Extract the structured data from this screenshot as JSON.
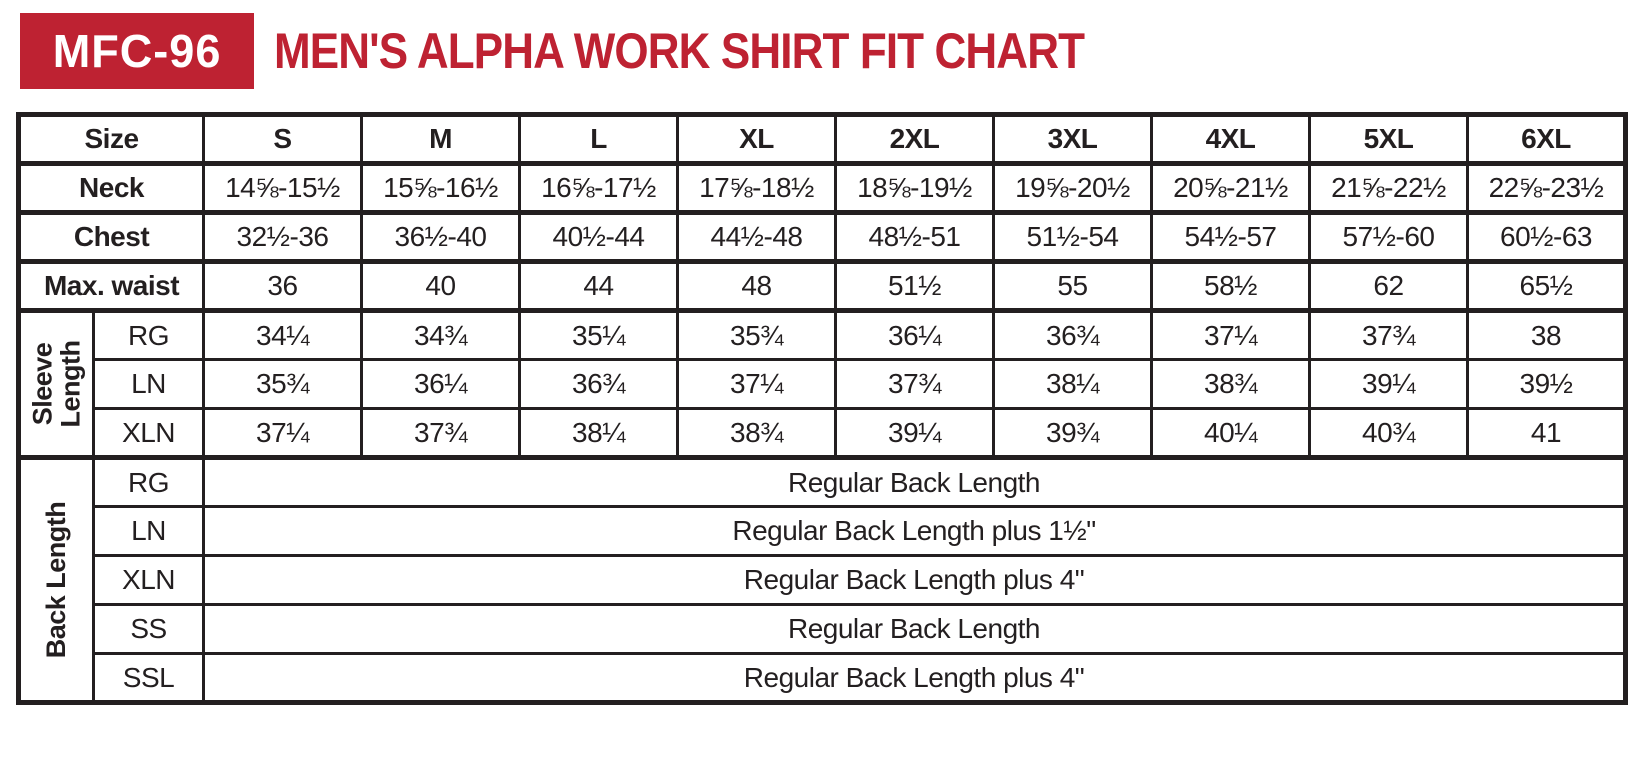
{
  "header": {
    "model": "MFC-96",
    "title": "MEN'S ALPHA WORK SHIRT FIT CHART"
  },
  "colors": {
    "accent_red": "#be2232",
    "cell_gray": "#e7e7e7",
    "border_black": "#231f20"
  },
  "table": {
    "corner_label": "Size",
    "sizes": [
      "S",
      "M",
      "L",
      "XL",
      "2XL",
      "3XL",
      "4XL",
      "5XL",
      "6XL"
    ],
    "measure_rows": [
      {
        "label": "Neck",
        "values": [
          "14⅝-15½",
          "15⅝-16½",
          "16⅝-17½",
          "17⅝-18½",
          "18⅝-19½",
          "19⅝-20½",
          "20⅝-21½",
          "21⅝-22½",
          "22⅝-23½"
        ]
      },
      {
        "label": "Chest",
        "values": [
          "32½-36",
          "36½-40",
          "40½-44",
          "44½-48",
          "48½-51",
          "51½-54",
          "54½-57",
          "57½-60",
          "60½-63"
        ]
      },
      {
        "label": "Max. waist",
        "values": [
          "36",
          "40",
          "44",
          "48",
          "51½",
          "55",
          "58½",
          "62",
          "65½"
        ]
      }
    ],
    "sleeve_length": {
      "group_label": "Sleeve Length",
      "rows": [
        {
          "label": "RG",
          "values": [
            "34¼",
            "34¾",
            "35¼",
            "35¾",
            "36¼",
            "36¾",
            "37¼",
            "37¾",
            "38"
          ]
        },
        {
          "label": "LN",
          "values": [
            "35¾",
            "36¼",
            "36¾",
            "37¼",
            "37¾",
            "38¼",
            "38¾",
            "39¼",
            "39½"
          ]
        },
        {
          "label": "XLN",
          "values": [
            "37¼",
            "37¾",
            "38¼",
            "38¾",
            "39¼",
            "39¾",
            "40¼",
            "40¾",
            "41"
          ]
        }
      ]
    },
    "back_length": {
      "group_label": "Back Length",
      "rows": [
        {
          "label": "RG",
          "value": "Regular Back Length"
        },
        {
          "label": "LN",
          "value": "Regular Back Length plus 1½\""
        },
        {
          "label": "XLN",
          "value": "Regular Back Length plus 4\""
        },
        {
          "label": "SS",
          "value": "Regular Back Length"
        },
        {
          "label": "SSL",
          "value": "Regular Back Length plus 4\""
        }
      ]
    }
  }
}
